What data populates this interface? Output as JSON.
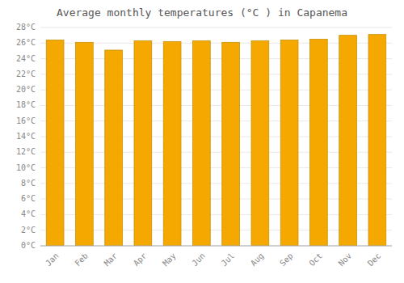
{
  "chart_data": {
    "type": "bar",
    "title": "Average monthly temperatures (°C ) in Capanema",
    "categories": [
      "Jan",
      "Feb",
      "Mar",
      "Apr",
      "May",
      "Jun",
      "Jul",
      "Aug",
      "Sep",
      "Oct",
      "Nov",
      "Dec"
    ],
    "values": [
      26.4,
      26.1,
      25.1,
      26.3,
      26.2,
      26.3,
      26.1,
      26.3,
      26.4,
      26.5,
      27.0,
      27.1
    ],
    "color": "#F5A800",
    "ylim": [
      0,
      28
    ],
    "yticks": [
      {
        "value": 0,
        "label": "0°C"
      },
      {
        "value": 2,
        "label": "2°C"
      },
      {
        "value": 4,
        "label": "4°C"
      },
      {
        "value": 6,
        "label": "6°C"
      },
      {
        "value": 8,
        "label": "8°C"
      },
      {
        "value": 10,
        "label": "10°C"
      },
      {
        "value": 12,
        "label": "12°C"
      },
      {
        "value": 14,
        "label": "14°C"
      },
      {
        "value": 16,
        "label": "16°C"
      },
      {
        "value": 18,
        "label": "18°C"
      },
      {
        "value": 20,
        "label": "20°C"
      },
      {
        "value": 22,
        "label": "22°C"
      },
      {
        "value": 24,
        "label": "24°C"
      },
      {
        "value": 26,
        "label": "26°C"
      },
      {
        "value": 28,
        "label": "28°C"
      }
    ],
    "grid": true
  }
}
